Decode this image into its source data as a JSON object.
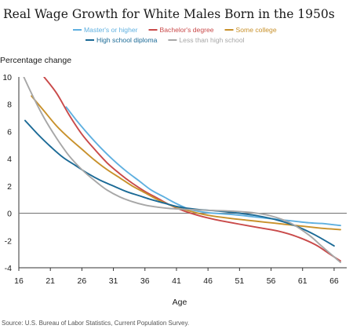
{
  "chart_data": {
    "type": "line",
    "title": "Real Wage Growth for White Males Born in the 1950s",
    "ylabel": "Percentage change",
    "xlabel": "Age",
    "xlim": [
      16,
      68
    ],
    "ylim": [
      -4,
      10
    ],
    "x_ticks": [
      16,
      21,
      26,
      31,
      36,
      41,
      46,
      51,
      56,
      61,
      66
    ],
    "y_ticks": [
      10,
      8,
      6,
      4,
      2,
      0,
      -2,
      -4
    ],
    "grid": false,
    "legend_position": "top",
    "source": "Source: U.S. Bureau of Labor Statistics, Current Population Survey.",
    "series": [
      {
        "name": "Master's or higher",
        "color": "#5fb0e0",
        "x": [
          23.5,
          25,
          27,
          29,
          31,
          33,
          35,
          37,
          39,
          41,
          43,
          45,
          47,
          50,
          53,
          56,
          59,
          62,
          64,
          66,
          67
        ],
        "y": [
          7.8,
          6.9,
          5.8,
          4.8,
          3.9,
          3.1,
          2.4,
          1.7,
          1.2,
          0.7,
          0.3,
          0.1,
          0.0,
          -0.1,
          -0.25,
          -0.4,
          -0.55,
          -0.7,
          -0.75,
          -0.85,
          -0.9
        ]
      },
      {
        "name": "Bachelor's degree",
        "color": "#c94a4a",
        "x": [
          20,
          22,
          24,
          26,
          28,
          30,
          32,
          34,
          36,
          38,
          40,
          42,
          44,
          46,
          48,
          51,
          54,
          57,
          60,
          63,
          65,
          67
        ],
        "y": [
          10.0,
          8.8,
          7.2,
          5.8,
          4.7,
          3.7,
          2.9,
          2.2,
          1.6,
          1.1,
          0.6,
          0.2,
          -0.1,
          -0.35,
          -0.55,
          -0.8,
          -1.05,
          -1.3,
          -1.7,
          -2.3,
          -2.9,
          -3.5
        ]
      },
      {
        "name": "Some college",
        "color": "#c8912b",
        "x": [
          18,
          20,
          22,
          24,
          26,
          28,
          30,
          32,
          34,
          36,
          38,
          40,
          42,
          44,
          46,
          49,
          52,
          55,
          58,
          61,
          64,
          67
        ],
        "y": [
          8.6,
          7.5,
          6.4,
          5.5,
          4.7,
          3.9,
          3.2,
          2.6,
          2.0,
          1.5,
          1.0,
          0.6,
          0.3,
          0.05,
          -0.15,
          -0.35,
          -0.5,
          -0.65,
          -0.8,
          -0.95,
          -1.1,
          -1.2
        ]
      },
      {
        "name": "High school diploma",
        "color": "#1b6a96",
        "x": [
          17,
          19,
          21,
          23,
          25,
          27,
          29,
          31,
          33,
          35,
          37,
          39,
          41,
          43,
          45,
          48,
          51,
          54,
          57,
          60,
          63,
          66
        ],
        "y": [
          6.8,
          5.8,
          4.9,
          4.1,
          3.5,
          2.9,
          2.4,
          2.0,
          1.6,
          1.3,
          1.0,
          0.75,
          0.5,
          0.35,
          0.25,
          0.15,
          0.0,
          -0.2,
          -0.5,
          -0.95,
          -1.6,
          -2.4
        ]
      },
      {
        "name": "Less than high school",
        "color": "#a7a7a7",
        "x": [
          16,
          18,
          20,
          22,
          24,
          26,
          28,
          30,
          32,
          34,
          36,
          38,
          40,
          42,
          44,
          47,
          50,
          53,
          56,
          59,
          62,
          64,
          66,
          67
        ],
        "y": [
          10.8,
          8.8,
          7.0,
          5.5,
          4.2,
          3.2,
          2.4,
          1.7,
          1.2,
          0.85,
          0.6,
          0.45,
          0.35,
          0.3,
          0.25,
          0.2,
          0.15,
          0.05,
          -0.2,
          -0.7,
          -1.6,
          -2.4,
          -3.2,
          -3.6
        ]
      }
    ]
  }
}
